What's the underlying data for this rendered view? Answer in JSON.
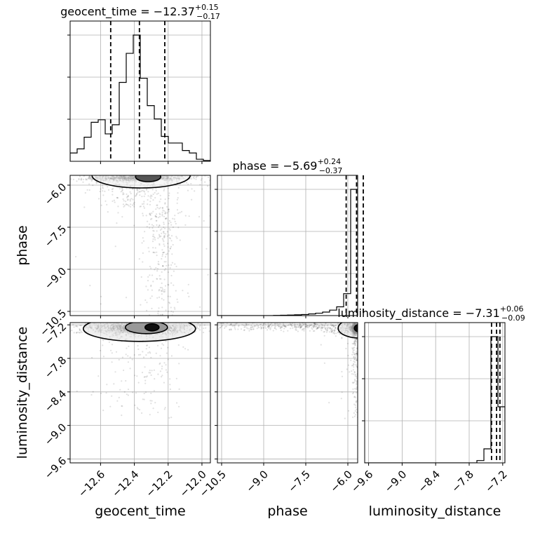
{
  "chart_data": {
    "type": "corner",
    "parameters": [
      "geocent_time",
      "phase",
      "luminosity_distance"
    ],
    "axis_labels": {
      "geocent_time": "geocent_time",
      "phase": "phase",
      "luminosity_distance": "luminosity_distance"
    },
    "titles": {
      "geocent_time": {
        "prefix": "geocent_time = ",
        "value": "−12.37",
        "plus": "+0.15",
        "minus": "−0.17"
      },
      "phase": {
        "prefix": "phase = ",
        "value": "−5.69",
        "plus": "+0.24",
        "minus": "−0.37"
      },
      "luminosity_distance": {
        "prefix": "luminosity_distance = ",
        "value": "−7.31",
        "plus": "+0.06",
        "minus": "−0.09"
      }
    },
    "ranges": {
      "geocent_time": [
        -12.78,
        -11.95
      ],
      "phase": [
        -10.65,
        -5.65
      ],
      "luminosity_distance": [
        -9.67,
        -7.16
      ]
    },
    "ticks": {
      "geocent_time": {
        "values": [
          -12.6,
          -12.4,
          -12.2,
          -12.0
        ],
        "labels": [
          "−12.6",
          "−12.4",
          "−12.2",
          "−12.0"
        ]
      },
      "phase": {
        "values": [
          -10.5,
          -9.0,
          -7.5,
          -6.0
        ],
        "labels": [
          "−10.5",
          "−9.0",
          "−7.5",
          "−6.0"
        ]
      },
      "luminosity_distance": {
        "values": [
          -9.6,
          -9.0,
          -8.4,
          -7.8,
          -7.2
        ],
        "labels": [
          "−9.6",
          "−9.0",
          "−8.4",
          "−7.8",
          "−7.2"
        ]
      }
    },
    "histograms": {
      "geocent_time": {
        "edges": [
          -12.78,
          -12.7385,
          -12.697,
          -12.6555,
          -12.614,
          -12.5725,
          -12.531,
          -12.4895,
          -12.448,
          -12.4065,
          -12.365,
          -12.3235,
          -12.282,
          -12.2405,
          -12.199,
          -12.1575,
          -12.116,
          -12.0745,
          -12.033,
          -11.9915,
          -11.95
        ],
        "counts": [
          1.0,
          1.5,
          2.9,
          4.7,
          5.0,
          3.3,
          4.4,
          9.5,
          13.0,
          15.2,
          10.0,
          6.7,
          5.1,
          3.0,
          2.2,
          2.2,
          1.3,
          1.0,
          0.25,
          0.1
        ],
        "quantiles": [
          -12.54,
          -12.37,
          -12.22
        ]
      },
      "phase": {
        "edges": [
          -10.65,
          -10.4,
          -10.15,
          -9.9,
          -9.65,
          -9.4,
          -9.15,
          -8.9,
          -8.65,
          -8.4,
          -8.15,
          -7.9,
          -7.65,
          -7.4,
          -7.15,
          -6.9,
          -6.65,
          -6.4,
          -6.15,
          -5.9,
          -5.65
        ],
        "counts": [
          0,
          0,
          0,
          0,
          0,
          0,
          0,
          0,
          0.02,
          0.03,
          0.05,
          0.07,
          0.1,
          0.15,
          0.22,
          0.32,
          0.5,
          0.8,
          2.0,
          11.5
        ],
        "quantiles": [
          -6.06,
          -5.69,
          -5.45
        ]
      },
      "luminosity_distance": {
        "edges": [
          -9.67,
          -9.5445,
          -9.419,
          -9.2935,
          -9.168,
          -9.0425,
          -8.917,
          -8.7915,
          -8.666,
          -8.5405,
          -8.415,
          -8.2895,
          -8.164,
          -8.0385,
          -7.913,
          -7.7875,
          -7.662,
          -7.5365,
          -7.411,
          -7.2855,
          -7.16
        ],
        "counts": [
          0,
          0,
          0,
          0,
          0,
          0,
          0,
          0,
          0,
          0,
          0,
          0,
          0,
          0,
          0,
          0,
          0.05,
          0.3,
          2.7,
          1.2
        ],
        "quantiles": [
          -7.4,
          -7.31,
          -7.25
        ]
      }
    },
    "scatter_2d": {
      "phase_vs_geocent_time": {
        "x": "geocent_time",
        "y": "phase"
      },
      "luminosity_distance_vs_geocent_time": {
        "x": "geocent_time",
        "y": "luminosity_distance"
      },
      "luminosity_distance_vs_phase": {
        "x": "phase",
        "y": "luminosity_distance"
      }
    },
    "grid": true,
    "colors": {
      "line": "#000000",
      "grid": "#b0b0b0",
      "points": "#000000"
    }
  }
}
